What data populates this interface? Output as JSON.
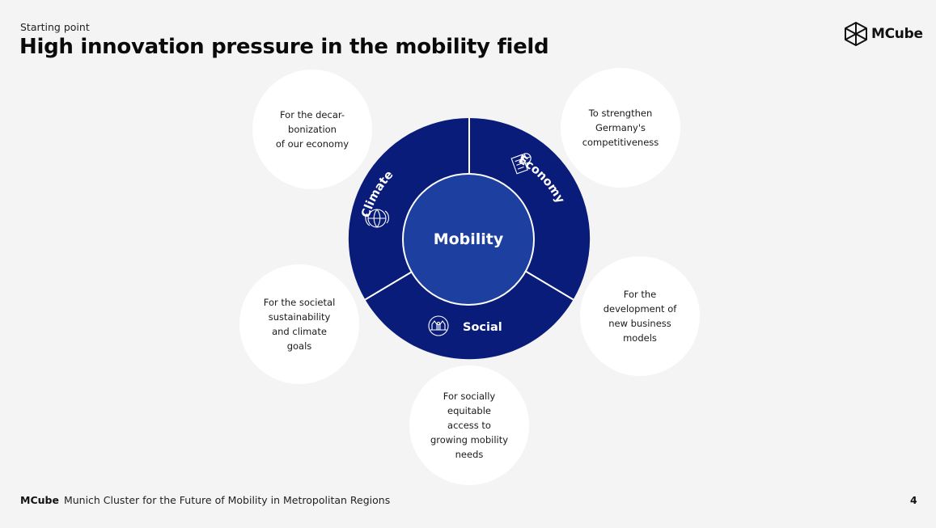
{
  "header": {
    "kicker": "Starting point",
    "title": "High innovation pressure in the mobility field"
  },
  "logo": {
    "text": "MCube",
    "icon": "cube-logo-icon"
  },
  "diagram": {
    "center_label": "Mobility",
    "segments": [
      {
        "label": "Climate",
        "icon": "globe-leaf-icon"
      },
      {
        "label": "Economy",
        "icon": "building-chart-icon"
      },
      {
        "label": "Social",
        "icon": "people-houses-icon"
      }
    ],
    "bubbles": [
      {
        "text": "For the decar-\nbonization\nof our economy"
      },
      {
        "text": "To strengthen\nGermany's\ncompetitiveness"
      },
      {
        "text": "For the societal\nsustainability\nand climate\ngoals"
      },
      {
        "text": "For the\ndevelopment of\nnew business\nmodels"
      },
      {
        "text": "For socially\nequitable\naccess to\ngrowing mobility\nneeds"
      }
    ],
    "colors": {
      "outer_ring": "#0a1c7a",
      "inner_circle": "#1d3fa0",
      "bubble": "#ffffff",
      "background": "#f4f4f4"
    }
  },
  "footer": {
    "brand": "MCube",
    "text": "Munich Cluster for the Future of Mobility in Metropolitan Regions",
    "page_number": "4"
  }
}
